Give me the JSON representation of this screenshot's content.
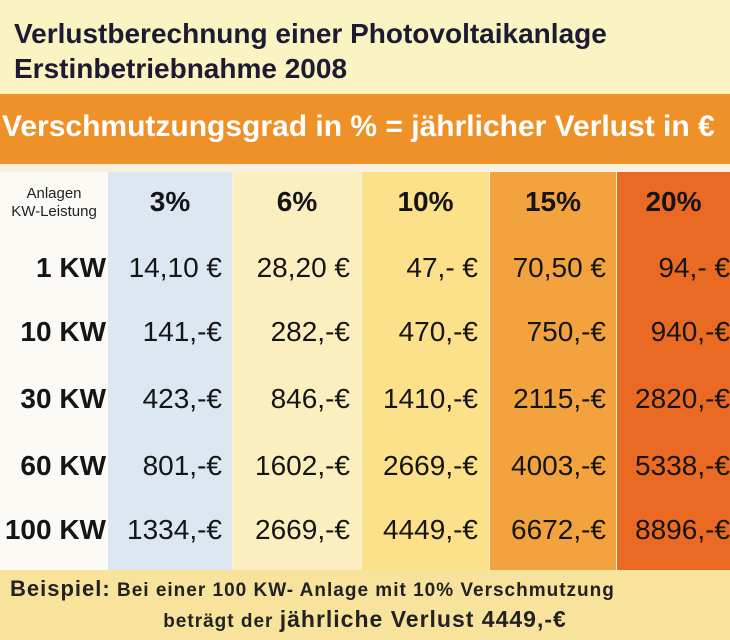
{
  "header": {
    "title_lines": [
      "Verlustberechnung einer Photovoltaikanlage",
      "Erstinbetriebnahme 2008"
    ]
  },
  "banner": "Verschmutzungsgrad in % = jährlicher Verlust in €",
  "table": {
    "corner": [
      "Anlagen",
      "KW-Leistung"
    ],
    "columns": [
      "3%",
      "6%",
      "10%",
      "15%",
      "20%"
    ],
    "rows": [
      [
        "1 KW",
        "14,10 €",
        "28,20 €",
        "47,- €",
        "70,50 €",
        "94,- €"
      ],
      [
        "10 KW",
        "141,-€",
        "282,-€",
        "470,-€",
        "750,-€",
        "940,-€"
      ],
      [
        "30 KW",
        "423,-€",
        "846,-€",
        "1410,-€",
        "2115,-€",
        "2820,-€"
      ],
      [
        "60 KW",
        "801,-€",
        "1602,-€",
        "2669,-€",
        "4003,-€",
        "5338,-€"
      ],
      [
        "100 KW",
        "1334,-€",
        "2669,-€",
        "4449,-€",
        "6672,-€",
        "8896,-€"
      ]
    ]
  },
  "footer": {
    "label": "Beispiel:",
    "line1": "Bei einer 100 KW- Anlage mit 10% Verschmutzung",
    "line2_prefix": "beträgt der",
    "line2_emphasis": "jährliche Verlust 4449,-€"
  }
}
